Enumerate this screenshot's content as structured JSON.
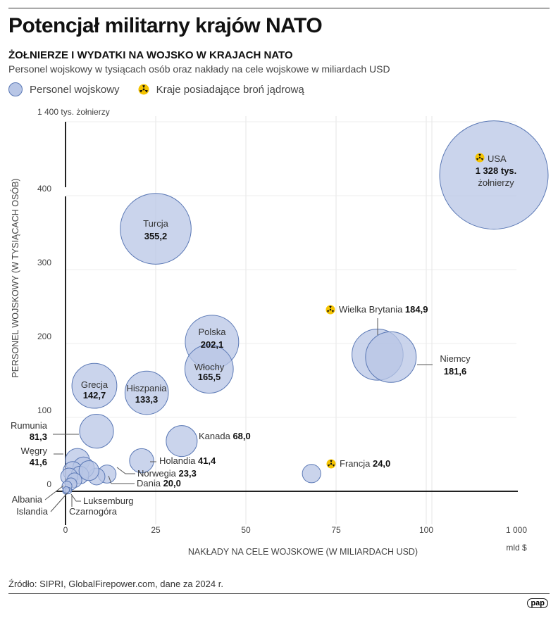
{
  "title": "Potencjał militarny krajów NATO",
  "subtitle": "ŻOŁNIERZE I WYDATKI NA WOJSKO W KRAJACH NATO",
  "description": "Personel wojskowy w tysiącach osób oraz nakłady na cele wojskowe w miliardach USD",
  "legend": {
    "bubble": "Personel wojskowy",
    "nuclear": "Kraje posiadające broń jądrową"
  },
  "source": "Źródło: SIPRI, GlobalFirepower.com, dane za 2024 r.",
  "logo": "pap",
  "colors": {
    "bubble_fill": "#b8c6e6",
    "bubble_stroke": "#5a78b5",
    "nuclear": "#f5c400"
  },
  "chart_data": {
    "type": "scatter",
    "xlabel": "NAKŁADY NA CELE WOJSKOWE (W MILIARDACH USD)",
    "ylabel": "PERSONEL WOJSKOWY (W TYSIĄCACH OSÓB)",
    "x_ticks": [
      "0",
      "25",
      "50",
      "75",
      "100",
      "1 000"
    ],
    "x_unit": "mld $",
    "y_ticks": [
      "0",
      "100",
      "200",
      "300",
      "400",
      "1 400 tys. żołnierzy"
    ],
    "axis_break": "broken axes between 100 and 1 000 (x) and 400 and 1 400 (y)",
    "grid": true,
    "usa_label": {
      "value": "1 328 tys.",
      "unit": "żołnierzy"
    },
    "points": [
      {
        "name": "USA",
        "x": 968,
        "y": 1328,
        "nuclear": true
      },
      {
        "name": "Turcja",
        "x": 25,
        "y": 355.2,
        "value": "355,2"
      },
      {
        "name": "Polska",
        "x": 40.6,
        "y": 202.1,
        "value": "202,1"
      },
      {
        "name": "Włochy",
        "x": 39.8,
        "y": 165.5,
        "value": "165,5"
      },
      {
        "name": "Wielka Brytania",
        "x": 86.5,
        "y": 184.9,
        "value": "184,9",
        "nuclear": true
      },
      {
        "name": "Niemcy",
        "x": 90.2,
        "y": 181.6,
        "value": "181,6"
      },
      {
        "name": "Grecja",
        "x": 8,
        "y": 142.7,
        "value": "142,7"
      },
      {
        "name": "Hiszpania",
        "x": 22.5,
        "y": 133.3,
        "value": "133,3"
      },
      {
        "name": "Rumunia",
        "x": 8.6,
        "y": 81.3,
        "value": "81,3"
      },
      {
        "name": "Kanada",
        "x": 32.2,
        "y": 68.0,
        "value": "68,0"
      },
      {
        "name": "Holandia",
        "x": 21.1,
        "y": 41.4,
        "value": "41,4"
      },
      {
        "name": "Węgry",
        "x": 3.3,
        "y": 41.6,
        "value": "41,6"
      },
      {
        "name": "Francja",
        "x": 68.2,
        "y": 24.0,
        "value": "24,0",
        "nuclear": true
      },
      {
        "name": "Norwegia",
        "x": 11.5,
        "y": 23.3,
        "value": "23,3"
      },
      {
        "name": "Dania",
        "x": 8.6,
        "y": 20.0,
        "value": "20,0"
      },
      {
        "name": "",
        "x": 5,
        "y": 32
      },
      {
        "name": "",
        "x": 2,
        "y": 27
      },
      {
        "name": "",
        "x": 4,
        "y": 22
      },
      {
        "name": "",
        "x": 6.5,
        "y": 28
      },
      {
        "name": "",
        "x": 1,
        "y": 20
      },
      {
        "name": "",
        "x": 2.5,
        "y": 15
      },
      {
        "name": "",
        "x": 1.5,
        "y": 10
      },
      {
        "name": "Albania",
        "x": 0.4,
        "y": 7
      },
      {
        "name": "Islandia",
        "x": 0.1,
        "y": 0.5
      },
      {
        "name": "Luksemburg",
        "x": 0.8,
        "y": 1
      },
      {
        "name": "Czarnogóra",
        "x": 0.2,
        "y": 2
      }
    ]
  }
}
